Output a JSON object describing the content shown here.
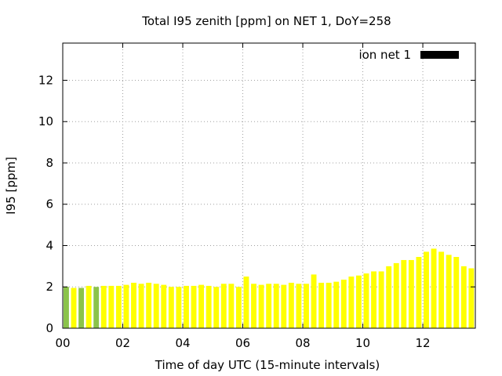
{
  "chart_data": {
    "type": "bar",
    "title": "Total I95 zenith [ppm] on NET 1, DoY=258",
    "xlabel": "Time of day UTC (15-minute intervals)",
    "ylabel": "I95 [ppm]",
    "xlim": [
      0,
      13.75
    ],
    "ylim": [
      0,
      13.8
    ],
    "xticks": [
      0,
      2,
      4,
      6,
      8,
      10,
      12
    ],
    "xtick_labels": [
      "00",
      "02",
      "04",
      "06",
      "08",
      "10",
      "12"
    ],
    "yticks": [
      0,
      2,
      4,
      6,
      8,
      10,
      12
    ],
    "ytick_labels": [
      "0",
      "2",
      "4",
      "6",
      "8",
      "10",
      "12"
    ],
    "grid": true,
    "legend_position": "top-right",
    "series": [
      {
        "name": "ion net 1",
        "color": "#ffff00",
        "highlight_color": "#8bc34a",
        "legend_color": "#000000",
        "interval_hours": 0.25,
        "x": [
          0.0,
          0.25,
          0.5,
          0.75,
          1.0,
          1.25,
          1.5,
          1.75,
          2.0,
          2.25,
          2.5,
          2.75,
          3.0,
          3.25,
          3.5,
          3.75,
          4.0,
          4.25,
          4.5,
          4.75,
          5.0,
          5.25,
          5.5,
          5.75,
          6.0,
          6.25,
          6.5,
          6.75,
          7.0,
          7.25,
          7.5,
          7.75,
          8.0,
          8.25,
          8.5,
          8.75,
          9.0,
          9.25,
          9.5,
          9.75,
          10.0,
          10.25,
          10.5,
          10.75,
          11.0,
          11.25,
          11.5,
          11.75,
          12.0,
          12.25,
          12.5,
          12.75,
          13.0,
          13.25,
          13.5
        ],
        "values": [
          2.0,
          1.95,
          1.95,
          2.05,
          2.0,
          2.05,
          2.05,
          2.05,
          2.1,
          2.2,
          2.15,
          2.2,
          2.15,
          2.1,
          2.0,
          2.0,
          2.05,
          2.05,
          2.1,
          2.05,
          2.0,
          2.15,
          2.15,
          2.0,
          2.5,
          2.15,
          2.1,
          2.15,
          2.15,
          2.1,
          2.2,
          2.15,
          2.15,
          2.6,
          2.2,
          2.2,
          2.25,
          2.35,
          2.5,
          2.55,
          2.65,
          2.75,
          2.75,
          3.0,
          3.15,
          3.3,
          3.3,
          3.45,
          3.7,
          3.85,
          3.7,
          3.55,
          3.45,
          3.0,
          2.9
        ],
        "highlight": [
          true,
          false,
          true,
          false,
          true,
          false,
          false,
          false,
          false,
          false,
          false,
          false,
          false,
          false,
          false,
          false,
          false,
          false,
          false,
          false,
          false,
          false,
          false,
          false,
          false,
          false,
          false,
          false,
          false,
          false,
          false,
          false,
          false,
          false,
          false,
          false,
          false,
          false,
          false,
          false,
          false,
          false,
          false,
          false,
          false,
          false,
          false,
          false,
          false,
          false,
          false,
          false,
          false,
          false,
          false
        ]
      }
    ]
  }
}
